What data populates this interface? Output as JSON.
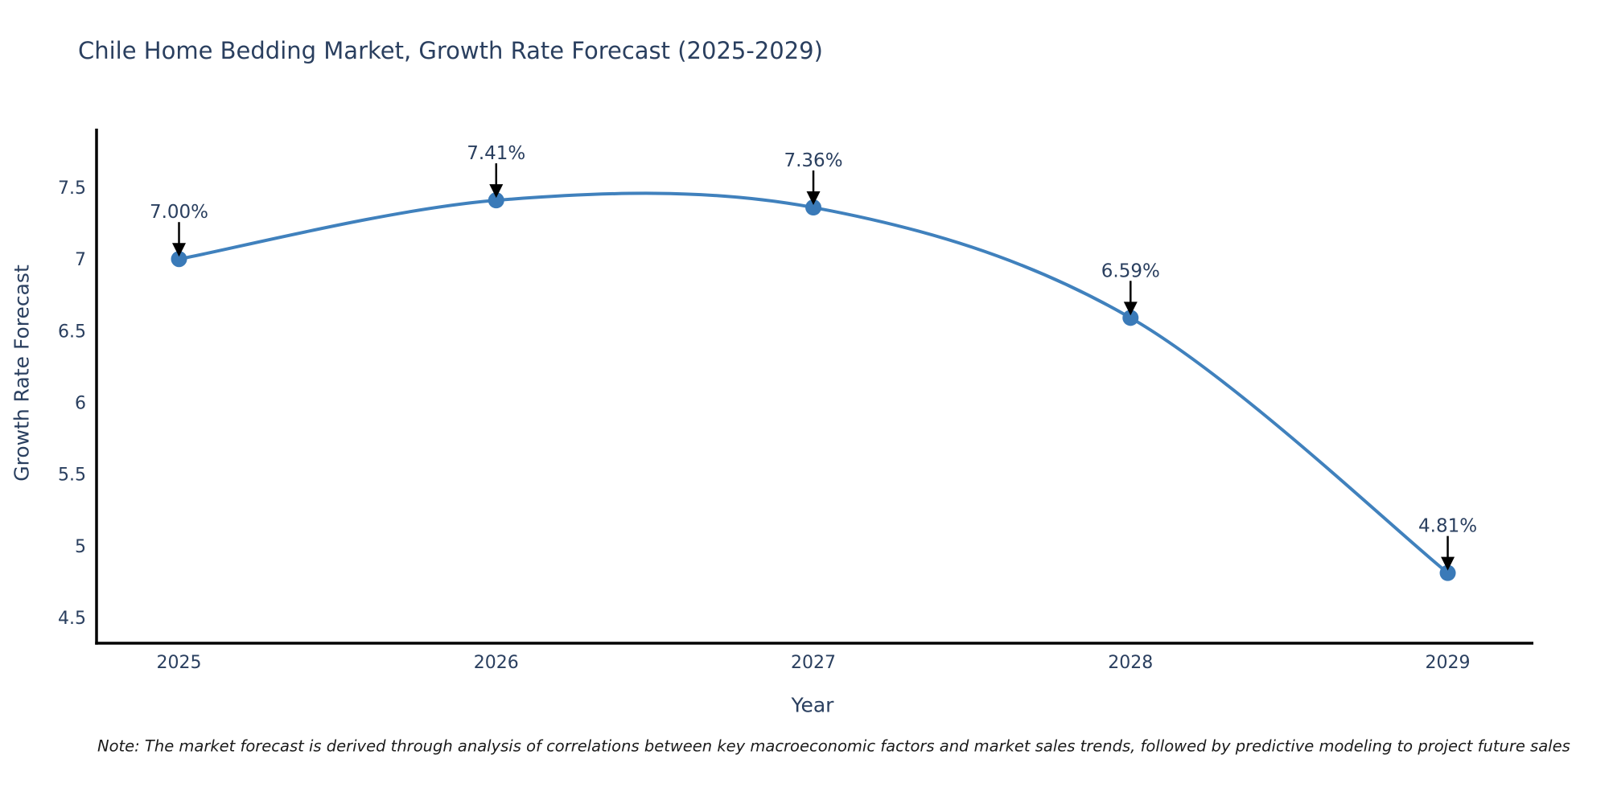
{
  "figure": {
    "note": "Note: The market forecast is derived through analysis of correlations between key macroeconomic factors and market sales trends, followed by predictive modeling to project future sales",
    "colors": {
      "text": "#2a3f5f",
      "line": "#4081bd",
      "marker": "#3a7ab8",
      "axis": "#000000",
      "arrow": "#000000",
      "background": "#ffffff"
    }
  },
  "chart_data": {
    "type": "line",
    "title": "Chile Home Bedding Market, Growth Rate Forecast (2025-2029)",
    "xlabel": "Year",
    "ylabel": "Growth Rate Forecast",
    "x": [
      2025,
      2026,
      2027,
      2028,
      2029
    ],
    "values": [
      7.0,
      7.41,
      7.36,
      6.59,
      4.81
    ],
    "point_labels": [
      "7.00%",
      "7.41%",
      "7.36%",
      "6.59%",
      "4.81%"
    ],
    "xtick_labels": [
      "2025",
      "2026",
      "2027",
      "2028",
      "2029"
    ],
    "ytick_values": [
      7.5,
      7,
      6.5,
      6,
      5.5,
      5,
      4.5
    ],
    "ytick_labels": [
      "7.5",
      "7",
      "6.5",
      "6",
      "5.5",
      "5",
      "4.5"
    ],
    "xlim": [
      2024.74,
      2029.27
    ],
    "ylim": [
      4.32,
      7.91
    ],
    "grid": false,
    "legend": false,
    "curve": "spline",
    "marker": "circle",
    "annotations_arrow": "down-black"
  }
}
